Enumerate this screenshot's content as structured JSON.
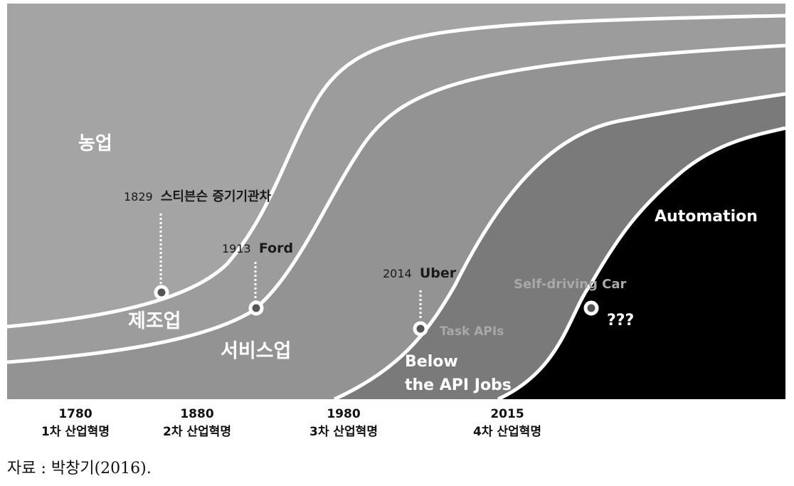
{
  "regions": {
    "agriculture": "농업",
    "manufacturing": "제조업",
    "service": "서비스업",
    "below_api_line1": "Below",
    "below_api_line2": "the API Jobs",
    "automation": "Automation"
  },
  "milestones": [
    {
      "year": "1829",
      "name": "스티븐슨 증기기관차"
    },
    {
      "year": "1913",
      "name": "Ford"
    },
    {
      "year": "2014",
      "name": "Uber"
    },
    {
      "year": "",
      "name": "Self-driving Car"
    }
  ],
  "point_labels": {
    "task_apis": "Task APIs",
    "unknown": "???"
  },
  "timeline": [
    {
      "year": "1780",
      "label": "1차 산업혁명"
    },
    {
      "year": "1880",
      "label": "2차 산업혁명"
    },
    {
      "year": "1980",
      "label": "3차 산업혁명"
    },
    {
      "year": "2015",
      "label": "4차 산업혁명"
    }
  ],
  "source": "자료 : 박창기(2016).",
  "colors": {
    "agriculture_band": "#a4a4a4",
    "manufacturing_band": "#9c9c9c",
    "service_band": "#939393",
    "below_api_band": "#7a7a7a",
    "automation_band": "#000000",
    "curve": "#ffffff"
  }
}
